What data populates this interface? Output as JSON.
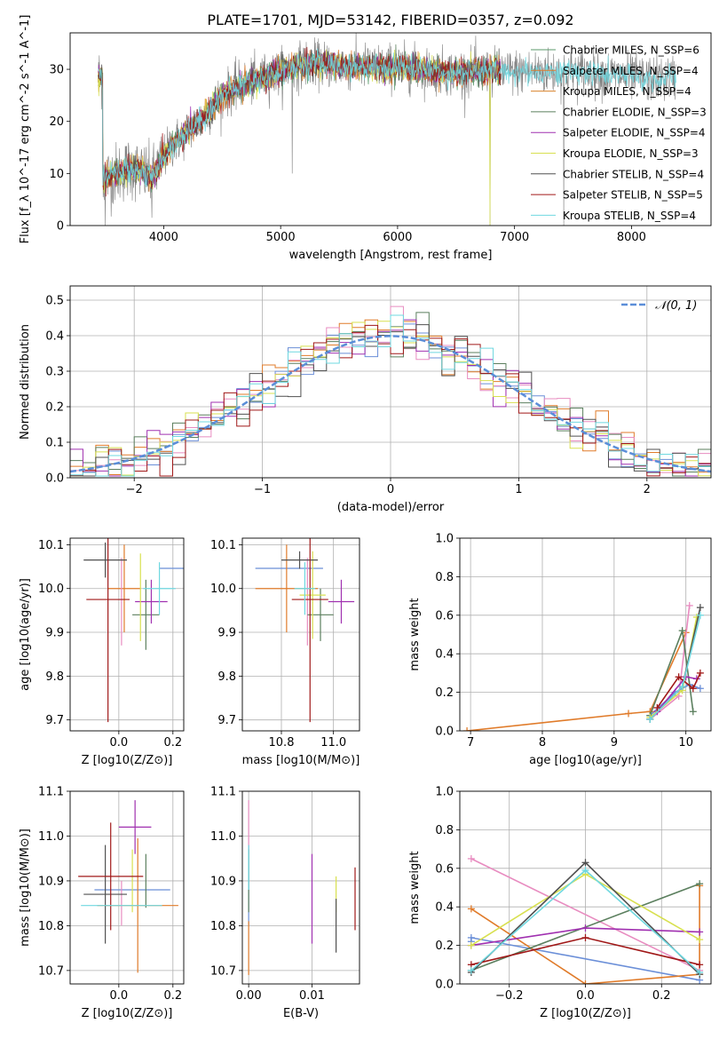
{
  "figure_title": "PLATE=1701, MJD=53142, FIBERID=0357, z=0.092",
  "colors": {
    "series": [
      "#5a9a6a",
      "#e07b2a",
      "#d9822b",
      "#5b7f5e",
      "#a030b0",
      "#d8e050",
      "#505050",
      "#a01818",
      "#6fd8e0"
    ],
    "model9": [
      "#6b8fd8",
      "#e07b2a",
      "#e88cc0",
      "#5b7f5e",
      "#a030b0",
      "#d8e050",
      "#505050",
      "#a01818",
      "#6fd8e0"
    ],
    "gaussian": "#5b8ed8",
    "grid": "#b0b0b0"
  },
  "chart_data": [
    {
      "id": "spectrum",
      "type": "line",
      "title": "PLATE=1701, MJD=53142, FIBERID=0357, z=0.092",
      "xlabel": "wavelength [Angstrom, rest frame]",
      "ylabel": "Flux [f_λ 10^-17 erg cm^-2 s^-1 A^-1]",
      "xlim": [
        3200,
        8680
      ],
      "ylim": [
        0,
        37
      ],
      "xticks": [
        4000,
        5000,
        6000,
        7000,
        8000
      ],
      "yticks": [
        0,
        10,
        20,
        30
      ],
      "grid": false,
      "legend_position": "top-right",
      "legend": [
        "Chabrier MILES, N_SSP=6",
        "Salpeter MILES, N_SSP=4",
        "Kroupa MILES, N_SSP=4",
        "Chabrier ELODIE, N_SSP=3",
        "Salpeter ELODIE, N_SSP=4",
        "Kroupa ELODIE, N_SSP=3",
        "Chabrier STELIB, N_SSP=4",
        "Salpeter STELIB, N_SSP=5",
        "Kroupa STELIB, N_SSP=4"
      ],
      "continuum": {
        "x": [
          3480,
          3600,
          3700,
          3800,
          3900,
          3950,
          4050,
          4150,
          4250,
          4350,
          4500,
          4650,
          4800,
          5000,
          5200,
          5400,
          5600,
          5800,
          6000,
          6200,
          6400,
          6600,
          6800,
          7000,
          7200,
          7400,
          7600,
          7800,
          8000,
          8200,
          8400
        ],
        "y": [
          9,
          10,
          11,
          10.5,
          9,
          11,
          15,
          17,
          19,
          21,
          25,
          27,
          28,
          29.5,
          31,
          31,
          30.5,
          30.5,
          30.5,
          30,
          29.5,
          29.5,
          29.5,
          29.5,
          29.5,
          29.5,
          29.5,
          29,
          28.5,
          28,
          28.5
        ]
      },
      "data_xrange": [
        3440,
        8380
      ],
      "dips": [
        {
          "x": 6790,
          "depth_to": 0
        },
        {
          "x": 7420,
          "depth_to": 0
        },
        {
          "x": 3500,
          "depth_to": 0
        },
        {
          "x": 3900,
          "depth_to": 1.5
        },
        {
          "x": 5100,
          "depth_to": 10
        }
      ]
    },
    {
      "id": "residuals",
      "type": "histogram",
      "xlabel": "(data-model)/error",
      "ylabel": "Normed distribution",
      "xlim": [
        -2.5,
        2.5
      ],
      "ylim": [
        0,
        0.54
      ],
      "xticks": [
        -2,
        -1,
        0,
        1,
        2
      ],
      "yticks": [
        0.0,
        0.1,
        0.2,
        0.3,
        0.4,
        0.5
      ],
      "grid": true,
      "legend": [
        "𝒩(0, 1)"
      ],
      "legend_position": "top-right",
      "bin_width": 0.1,
      "bin_start": -2.5,
      "series_count": 9
    },
    {
      "id": "age_vs_Z",
      "type": "scatter",
      "xlabel": "Z [log10(Z/Z⊙)]",
      "ylabel": "age  [log10(age/yr)]",
      "xlim": [
        -0.18,
        0.24
      ],
      "ylim": [
        9.675,
        10.115
      ],
      "xticks": [
        0.0,
        0.2
      ],
      "xticklabels": [
        "0.0",
        "0.2"
      ],
      "yticks": [
        9.7,
        9.8,
        9.9,
        10.0,
        10.1
      ],
      "grid": true,
      "points": [
        {
          "x": 0.2,
          "y": 10.046,
          "xerr": 0.05,
          "yerr": 0.0
        },
        {
          "x": 0.02,
          "y": 10.0,
          "xerr": 0.06,
          "yerr": 0.1
        },
        {
          "x": 0.01,
          "y": 9.97,
          "xerr": 0.0,
          "yerr": 0.1
        },
        {
          "x": 0.1,
          "y": 9.94,
          "xerr": 0.05,
          "yerr": 0.08
        },
        {
          "x": 0.12,
          "y": 9.97,
          "xerr": 0.06,
          "yerr": 0.05
        },
        {
          "x": 0.08,
          "y": 9.98,
          "xerr": 0.0,
          "yerr": 0.1
        },
        {
          "x": -0.05,
          "y": 10.065,
          "xerr": 0.08,
          "yerr": 0.04
        },
        {
          "x": -0.04,
          "y": 9.975,
          "xerr": 0.08,
          "yerr": 0.28
        },
        {
          "x": 0.15,
          "y": 10.0,
          "xerr": 0.06,
          "yerr": 0.06
        }
      ]
    },
    {
      "id": "age_vs_mass",
      "type": "scatter",
      "xlabel": "mass [log10(M/M⊙)]",
      "ylabel": "",
      "xlim": [
        10.65,
        11.1
      ],
      "ylim": [
        9.675,
        10.115
      ],
      "xticks": [
        10.8,
        11.0
      ],
      "xticklabels": [
        "10.8",
        "11.0"
      ],
      "yticks": [
        9.7,
        9.8,
        9.9,
        10.0,
        10.1
      ],
      "grid": true,
      "points": [
        {
          "x": 10.83,
          "y": 10.046,
          "xerr": 0.13,
          "yerr": 0.0
        },
        {
          "x": 10.82,
          "y": 10.0,
          "xerr": 0.12,
          "yerr": 0.1
        },
        {
          "x": 10.9,
          "y": 9.97,
          "xerr": 0.0,
          "yerr": 0.1
        },
        {
          "x": 10.95,
          "y": 9.94,
          "xerr": 0.05,
          "yerr": 0.06
        },
        {
          "x": 11.03,
          "y": 9.97,
          "xerr": 0.05,
          "yerr": 0.05
        },
        {
          "x": 10.92,
          "y": 9.985,
          "xerr": 0.05,
          "yerr": 0.1
        },
        {
          "x": 10.87,
          "y": 10.065,
          "xerr": 0.07,
          "yerr": 0.02
        },
        {
          "x": 10.91,
          "y": 9.975,
          "xerr": 0.07,
          "yerr": 0.28
        },
        {
          "x": 10.89,
          "y": 10.0,
          "xerr": 0.04,
          "yerr": 0.06
        }
      ]
    },
    {
      "id": "weight_vs_age",
      "type": "line",
      "xlabel": "age  [log10(age/yr)]",
      "ylabel": "mass weight",
      "xlim": [
        6.85,
        10.35
      ],
      "ylim": [
        0,
        1.0
      ],
      "xticks": [
        7,
        8,
        9,
        10
      ],
      "xticklabels": [
        "7",
        "8",
        "9",
        "10"
      ],
      "yticks": [
        0.0,
        0.2,
        0.4,
        0.6,
        0.8,
        1.0
      ],
      "grid": true,
      "series": [
        {
          "name": "",
          "x": [
            9.5,
            9.85,
            10.05,
            10.2
          ],
          "y": [
            0.08,
            0.2,
            0.24,
            0.22
          ]
        },
        {
          "name": "",
          "x": [
            6.95,
            9.2,
            9.5,
            10.0
          ],
          "y": [
            0.0,
            0.09,
            0.1,
            0.51
          ]
        },
        {
          "name": "",
          "x": [
            9.5,
            9.9,
            10.05
          ],
          "y": [
            0.06,
            0.18,
            0.65
          ]
        },
        {
          "name": "",
          "x": [
            9.5,
            9.95,
            10.1
          ],
          "y": [
            0.08,
            0.52,
            0.1
          ]
        },
        {
          "name": "",
          "x": [
            9.6,
            10.0,
            10.15
          ],
          "y": [
            0.1,
            0.28,
            0.27
          ]
        },
        {
          "name": "",
          "x": [
            9.5,
            9.95,
            10.15
          ],
          "y": [
            0.07,
            0.21,
            0.59
          ]
        },
        {
          "name": "",
          "x": [
            9.5,
            9.95,
            10.2
          ],
          "y": [
            0.06,
            0.23,
            0.64
          ]
        },
        {
          "name": "",
          "x": [
            9.6,
            9.9,
            10.1,
            10.2
          ],
          "y": [
            0.12,
            0.28,
            0.22,
            0.3
          ]
        },
        {
          "name": "",
          "x": [
            9.5,
            9.95,
            10.2
          ],
          "y": [
            0.06,
            0.23,
            0.6
          ]
        }
      ]
    },
    {
      "id": "mass_vs_Z",
      "type": "scatter",
      "xlabel": "Z [log10(Z/Z⊙)]",
      "ylabel": "mass [log10(M/M⊙)]",
      "xlim": [
        -0.18,
        0.24
      ],
      "ylim": [
        10.67,
        11.1
      ],
      "xticks": [
        0.0,
        0.2
      ],
      "xticklabels": [
        "0.0",
        "0.2"
      ],
      "yticks": [
        10.7,
        10.8,
        10.9,
        11.0,
        11.1
      ],
      "grid": true,
      "points": [
        {
          "x": 0.05,
          "y": 10.88,
          "xerr": 0.14,
          "yerr": 0.0
        },
        {
          "x": 0.07,
          "y": 10.845,
          "xerr": 0.15,
          "yerr": 0.15
        },
        {
          "x": 0.01,
          "y": 10.85,
          "xerr": 0.0,
          "yerr": 0.05
        },
        {
          "x": 0.1,
          "y": 10.9,
          "xerr": 0.0,
          "yerr": 0.06
        },
        {
          "x": 0.06,
          "y": 11.02,
          "xerr": 0.06,
          "yerr": 0.06
        },
        {
          "x": 0.05,
          "y": 10.9,
          "xerr": 0.0,
          "yerr": 0.07
        },
        {
          "x": -0.05,
          "y": 10.87,
          "xerr": 0.08,
          "yerr": 0.11
        },
        {
          "x": -0.03,
          "y": 10.91,
          "xerr": 0.12,
          "yerr": 0.12
        },
        {
          "x": 0.01,
          "y": 10.845,
          "xerr": 0.15,
          "yerr": 0.0
        }
      ]
    },
    {
      "id": "mass_vs_ebv",
      "type": "scatter",
      "xlabel": "E(B-V)",
      "ylabel": "",
      "xlim": [
        -0.001,
        0.0175
      ],
      "ylim": [
        10.67,
        11.1
      ],
      "xticks": [
        0.0,
        0.01
      ],
      "xticklabels": [
        "0.00",
        "0.01"
      ],
      "yticks": [
        10.7,
        10.8,
        10.9,
        11.0,
        11.1
      ],
      "grid": true,
      "points": [
        {
          "x": 0.0,
          "y": 10.89,
          "xerr": 0.0,
          "yerr": 0.09
        },
        {
          "x": 0.0,
          "y": 10.75,
          "xerr": 0.0,
          "yerr": 0.06
        },
        {
          "x": 0.0,
          "y": 11.02,
          "xerr": 0.0,
          "yerr": 0.06
        },
        {
          "x": 0.0,
          "y": 10.9,
          "xerr": 0.0,
          "yerr": 0.07
        },
        {
          "x": 0.01,
          "y": 10.86,
          "xerr": 0.0,
          "yerr": 0.1
        },
        {
          "x": 0.0138,
          "y": 10.87,
          "xerr": 0.0,
          "yerr": 0.04
        },
        {
          "x": 0.0138,
          "y": 10.8,
          "xerr": 0.0,
          "yerr": 0.06
        },
        {
          "x": 0.0168,
          "y": 10.86,
          "xerr": 0.0,
          "yerr": 0.07
        },
        {
          "x": 0.0,
          "y": 10.93,
          "xerr": 0.0,
          "yerr": 0.05
        }
      ]
    },
    {
      "id": "weight_vs_Z",
      "type": "line",
      "xlabel": "Z [log10(Z/Z⊙)]",
      "ylabel": "mass weight",
      "xlim": [
        -0.33,
        0.33
      ],
      "ylim": [
        0,
        1.0
      ],
      "xticks": [
        -0.2,
        0.0,
        0.2
      ],
      "xticklabels": [
        "−0.2",
        "0.0",
        "0.2"
      ],
      "yticks": [
        0.0,
        0.2,
        0.4,
        0.6,
        0.8,
        1.0
      ],
      "grid": true,
      "series": [
        {
          "name": "",
          "x": [
            -0.3,
            -0.3,
            0.3
          ],
          "y": [
            0.22,
            0.24,
            0.02
          ]
        },
        {
          "name": "",
          "x": [
            -0.3,
            0.0,
            0.3,
            0.3
          ],
          "y": [
            0.39,
            0.0,
            0.05,
            0.51
          ]
        },
        {
          "name": "",
          "x": [
            -0.3,
            0.3
          ],
          "y": [
            0.65,
            0.07
          ]
        },
        {
          "name": "",
          "x": [
            -0.3,
            0.3
          ],
          "y": [
            0.07,
            0.52
          ]
        },
        {
          "name": "",
          "x": [
            -0.3,
            0.0,
            0.3
          ],
          "y": [
            0.2,
            0.29,
            0.27
          ]
        },
        {
          "name": "",
          "x": [
            -0.3,
            0.0,
            0.3
          ],
          "y": [
            0.2,
            0.57,
            0.23
          ]
        },
        {
          "name": "",
          "x": [
            -0.3,
            0.0,
            0.3
          ],
          "y": [
            0.06,
            0.63,
            0.05
          ]
        },
        {
          "name": "",
          "x": [
            -0.3,
            0.0,
            0.3
          ],
          "y": [
            0.1,
            0.24,
            0.1
          ]
        },
        {
          "name": "",
          "x": [
            -0.3,
            0.0,
            0.3
          ],
          "y": [
            0.07,
            0.59,
            0.06
          ]
        }
      ]
    }
  ]
}
